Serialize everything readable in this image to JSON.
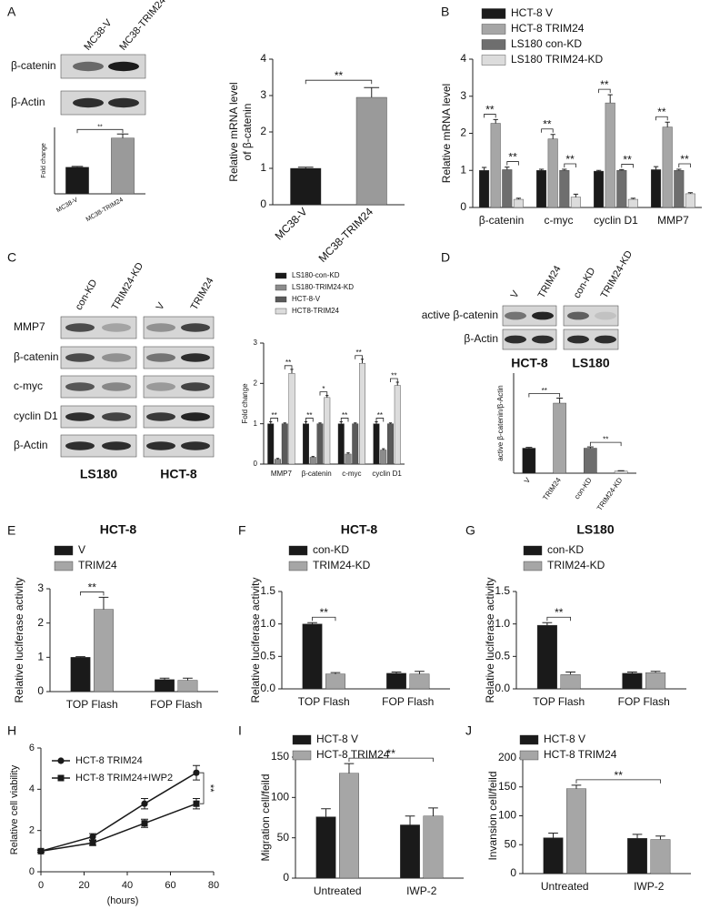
{
  "panels": [
    "A",
    "B",
    "C",
    "D",
    "E",
    "F",
    "G",
    "H",
    "I",
    "J"
  ],
  "blots": [
    {
      "lanes": [
        "MC38-V",
        "MC38-TRIM24"
      ],
      "rows": [
        "β-catenin",
        "β-Actin"
      ]
    },
    {
      "lanes": [
        "con-KD",
        "TRIM24-KD",
        "V",
        "TRIM24"
      ],
      "rows": [
        "MMP7",
        "β-catenin",
        "c-myc",
        "cyclin D1",
        "β-Actin"
      ],
      "groups": [
        "LS180",
        "HCT-8"
      ]
    },
    {
      "lanes": [
        "V",
        "TRIM24",
        "con-KD",
        "TRIM24-KD"
      ],
      "rows": [
        "active β-catenin",
        "β-Actin"
      ],
      "groups": [
        "HCT-8",
        "LS180"
      ]
    }
  ],
  "chart_data": [
    {
      "type": "bar",
      "ylabel": "Fold change",
      "categories": [
        "MC38-V",
        "MC38-TRIM24"
      ],
      "values": [
        1.0,
        2.1
      ],
      "errors": [
        0.03,
        0.15
      ],
      "colors": [
        "#1a1a1a",
        "#9a9a9a"
      ],
      "ylim": [
        0,
        2.5
      ],
      "annotations": [
        "**"
      ]
    },
    {
      "type": "bar",
      "ylabel": [
        "Relative mRNA level",
        "of β-catenin"
      ],
      "categories": [
        "MC38-V",
        "MC38-TRIM24"
      ],
      "values": [
        1.0,
        2.95
      ],
      "errors": [
        0.03,
        0.27
      ],
      "colors": [
        "#1a1a1a",
        "#9a9a9a"
      ],
      "ylim": [
        0,
        4
      ],
      "yticks": [
        0,
        1,
        2,
        3,
        4
      ],
      "annotations": [
        "**"
      ]
    },
    {
      "type": "bar",
      "ylabel": "Relative mRNA level",
      "categories": [
        "β-catenin",
        "c-myc",
        "cyclin D1",
        "MMP7"
      ],
      "series": [
        {
          "name": "HCT-8 V",
          "color": "#1a1a1a",
          "values": [
            1.0,
            1.0,
            0.98,
            1.02
          ],
          "errors": [
            0.08,
            0.03,
            0.02,
            0.08
          ]
        },
        {
          "name": "HCT-8 TRIM24",
          "color": "#a6a6a6",
          "values": [
            2.27,
            1.85,
            2.82,
            2.17
          ],
          "errors": [
            0.1,
            0.12,
            0.22,
            0.13
          ]
        },
        {
          "name": "LS180 con-KD",
          "color": "#6e6e6e",
          "values": [
            1.02,
            1.0,
            1.0,
            1.0
          ],
          "errors": [
            0.07,
            0.03,
            0.02,
            0.03
          ]
        },
        {
          "name": "LS180 TRIM24-KD",
          "color": "#dcdcdc",
          "values": [
            0.22,
            0.28,
            0.22,
            0.37
          ],
          "errors": [
            0.03,
            0.08,
            0.03,
            0.03
          ]
        }
      ],
      "ylim": [
        0,
        4
      ],
      "yticks": [
        0,
        1,
        2,
        3,
        4
      ],
      "annotations": [
        "**",
        "**",
        "**",
        "**",
        "**",
        "**",
        "**",
        "**"
      ]
    },
    {
      "type": "bar",
      "ylabel": "Fold change",
      "categories": [
        "MMP7",
        "β-catenin",
        "c-myc",
        "cyclin D1"
      ],
      "series": [
        {
          "name": "LS180-con-KD",
          "color": "#1a1a1a",
          "values": [
            1.0,
            1.0,
            1.0,
            1.0
          ],
          "errors": [
            0.05,
            0.05,
            0.05,
            0.05
          ]
        },
        {
          "name": "LS180-TRIM24-KD",
          "color": "#8c8c8c",
          "values": [
            0.12,
            0.17,
            0.25,
            0.35
          ],
          "errors": [
            0.02,
            0.02,
            0.03,
            0.03
          ]
        },
        {
          "name": "HCT-8-V",
          "color": "#5a5a5a",
          "values": [
            1.0,
            1.0,
            1.0,
            1.0
          ],
          "errors": [
            0.02,
            0.02,
            0.02,
            0.02
          ]
        },
        {
          "name": "HCT8-TRIM24",
          "color": "#dcdcdc",
          "values": [
            2.25,
            1.65,
            2.5,
            1.95
          ],
          "errors": [
            0.1,
            0.05,
            0.1,
            0.08
          ]
        }
      ],
      "ylim": [
        0,
        3
      ],
      "yticks": [
        0,
        1,
        2,
        3
      ],
      "annotations": [
        "**",
        "**",
        "**",
        "*",
        "**",
        "**",
        "**",
        "**"
      ]
    },
    {
      "type": "bar",
      "ylabel": "active β-catenin/β-Actin",
      "categories": [
        "V",
        "TRIM24",
        "con-KD",
        "TRIM24-KD"
      ],
      "values": [
        1.0,
        2.8,
        1.0,
        0.08
      ],
      "errors": [
        0.03,
        0.2,
        0.05,
        0.02
      ],
      "colors": [
        "#1a1a1a",
        "#a6a6a6",
        "#6e6e6e",
        "#dcdcdc"
      ],
      "ylim": [
        0,
        4
      ],
      "annotations": [
        "**",
        "**"
      ]
    },
    {
      "type": "bar",
      "title": "HCT-8",
      "ylabel": "Relative luciferase activity",
      "categories": [
        "TOP Flash",
        "FOP Flash"
      ],
      "series": [
        {
          "name": "V",
          "color": "#1a1a1a",
          "values": [
            1.0,
            0.35
          ],
          "errors": [
            0.02,
            0.04
          ]
        },
        {
          "name": "TRIM24",
          "color": "#a6a6a6",
          "values": [
            2.4,
            0.33
          ],
          "errors": [
            0.35,
            0.06
          ]
        }
      ],
      "ylim": [
        0,
        3
      ],
      "yticks": [
        0,
        1,
        2,
        3
      ],
      "annotations": [
        "**"
      ]
    },
    {
      "type": "bar",
      "title": "HCT-8",
      "ylabel": "Relative luciferase activity",
      "categories": [
        "TOP Flash",
        "FOP Flash"
      ],
      "series": [
        {
          "name": "con-KD",
          "color": "#1a1a1a",
          "values": [
            1.0,
            0.24
          ],
          "errors": [
            0.02,
            0.02
          ]
        },
        {
          "name": "TRIM24-KD",
          "color": "#a6a6a6",
          "values": [
            0.23,
            0.23
          ],
          "errors": [
            0.02,
            0.04
          ]
        }
      ],
      "ylim": [
        0,
        1.5
      ],
      "yticks": [
        {
          "value": 0,
          "label": "0.0"
        },
        {
          "value": 0.5,
          "label": "0.5"
        },
        {
          "value": 1,
          "label": "1.0"
        },
        {
          "value": 1.5,
          "label": "1.5"
        }
      ],
      "annotations": [
        "**"
      ]
    },
    {
      "type": "bar",
      "title": "LS180",
      "ylabel": "Relative luciferase activity",
      "categories": [
        "TOP Flash",
        "FOP Flash"
      ],
      "series": [
        {
          "name": "con-KD",
          "color": "#1a1a1a",
          "values": [
            0.98,
            0.24
          ],
          "errors": [
            0.04,
            0.02
          ]
        },
        {
          "name": "TRIM24-KD",
          "color": "#a6a6a6",
          "values": [
            0.22,
            0.25
          ],
          "errors": [
            0.04,
            0.02
          ]
        }
      ],
      "ylim": [
        0,
        1.5
      ],
      "yticks": [
        {
          "value": 0,
          "label": "0.0"
        },
        {
          "value": 0.5,
          "label": "0.5"
        },
        {
          "value": 1,
          "label": "1.0"
        },
        {
          "value": 1.5,
          "label": "1.5"
        }
      ],
      "annotations": [
        "**"
      ]
    },
    {
      "type": "line",
      "xlabel": "(hours)",
      "ylabel": "Relative cell viability",
      "x": [
        0,
        24,
        48,
        72
      ],
      "series": [
        {
          "name": "HCT-8 TRIM24",
          "color": "#1a1a1a",
          "marker": "circle",
          "values": [
            1.0,
            1.7,
            3.3,
            4.8
          ],
          "errors": [
            0.05,
            0.15,
            0.25,
            0.35
          ]
        },
        {
          "name": "HCT-8 TRIM24+IWP2",
          "color": "#1a1a1a",
          "marker": "square",
          "values": [
            1.0,
            1.4,
            2.35,
            3.3
          ],
          "errors": [
            0.05,
            0.12,
            0.2,
            0.25
          ]
        }
      ],
      "xlim": [
        0,
        80
      ],
      "xticks": [
        0,
        20,
        40,
        60,
        80
      ],
      "ylim": [
        0,
        6
      ],
      "yticks": [
        0,
        2,
        4,
        6
      ],
      "annotations": [
        "**"
      ]
    },
    {
      "type": "bar",
      "ylabel": "Migration cell/feild",
      "categories": [
        "Untreated",
        "IWP-2"
      ],
      "series": [
        {
          "name": "HCT-8 V",
          "color": "#1a1a1a",
          "values": [
            76,
            66
          ],
          "errors": [
            10,
            11
          ]
        },
        {
          "name": "HCT-8 TRIM24",
          "color": "#a6a6a6",
          "values": [
            130,
            77
          ],
          "errors": [
            12,
            10
          ]
        }
      ],
      "ylim": [
        0,
        150
      ],
      "yticks": [
        0,
        50,
        100,
        150
      ],
      "annotations": [
        "**"
      ]
    },
    {
      "type": "bar",
      "ylabel": "Invansion cell/feild",
      "categories": [
        "Untreated",
        "IWP-2"
      ],
      "series": [
        {
          "name": "HCT-8 V",
          "color": "#1a1a1a",
          "values": [
            62,
            61
          ],
          "errors": [
            8,
            7
          ]
        },
        {
          "name": "HCT-8 TRIM24",
          "color": "#a6a6a6",
          "values": [
            147,
            59
          ],
          "errors": [
            6,
            6
          ]
        }
      ],
      "ylim": [
        0,
        200
      ],
      "yticks": [
        0,
        50,
        100,
        150,
        200
      ],
      "annotations": [
        "**"
      ]
    }
  ]
}
